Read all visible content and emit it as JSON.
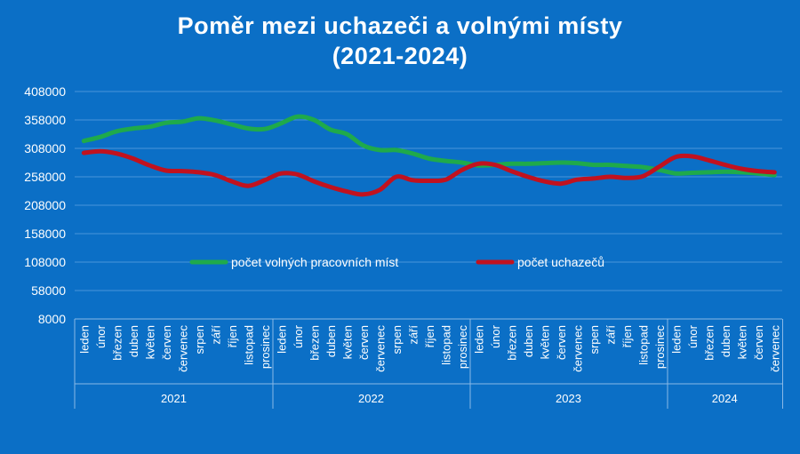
{
  "chart_data": {
    "type": "line",
    "title_line1": "Poměr mezi uchazeči a volnými místy",
    "title_line2": "(2021-2024)",
    "ylim": [
      8000,
      408000
    ],
    "yticks": [
      "408000",
      "358000",
      "308000",
      "258000",
      "208000",
      "158000",
      "108000",
      "58000",
      "8000"
    ],
    "ytick_values": [
      408000,
      358000,
      308000,
      258000,
      208000,
      158000,
      108000,
      58000,
      8000
    ],
    "years": [
      {
        "label": "2021",
        "months": [
          "leden",
          "únor",
          "březen",
          "duben",
          "květen",
          "červen",
          "červenec",
          "srpen",
          "září",
          "říjen",
          "listopad",
          "prosinec"
        ]
      },
      {
        "label": "2022",
        "months": [
          "leden",
          "únor",
          "březen",
          "duben",
          "květen",
          "červen",
          "červenec",
          "srpen",
          "září",
          "říjen",
          "listopad",
          "prosinec"
        ]
      },
      {
        "label": "2023",
        "months": [
          "leden",
          "únor",
          "březen",
          "duben",
          "květen",
          "červen",
          "červenec",
          "srpen",
          "září",
          "říjen",
          "listopad",
          "prosinec"
        ]
      },
      {
        "label": "2024",
        "months": [
          "leden",
          "únor",
          "březen",
          "duben",
          "květen",
          "červen",
          "červenec"
        ]
      }
    ],
    "series": [
      {
        "name": "počet volných pracovních míst",
        "color": "#1faa4b",
        "values": [
          321000,
          328000,
          338000,
          343000,
          346000,
          353000,
          355000,
          361000,
          357000,
          350000,
          343000,
          342000,
          352000,
          364000,
          358000,
          341000,
          333000,
          313000,
          305000,
          305000,
          299000,
          290000,
          286000,
          283000,
          278000,
          279000,
          281000,
          281000,
          282000,
          283000,
          282000,
          279000,
          279000,
          277000,
          275000,
          270000,
          264000,
          265000,
          266000,
          267000,
          266000,
          264000,
          261000
        ]
      },
      {
        "name": "počet uchazečů",
        "color": "#c1121f",
        "values": [
          300000,
          303000,
          299000,
          290000,
          278000,
          269000,
          268000,
          266000,
          261000,
          250000,
          242000,
          252000,
          264000,
          262000,
          250000,
          240000,
          232000,
          227000,
          235000,
          258000,
          252000,
          251000,
          253000,
          270000,
          281000,
          279000,
          268000,
          258000,
          250000,
          246000,
          253000,
          255000,
          258000,
          256000,
          259000,
          276000,
          293000,
          294000,
          287000,
          279000,
          272000,
          268000,
          266000
        ]
      }
    ],
    "legend": {
      "position": "center"
    },
    "grid": true
  }
}
